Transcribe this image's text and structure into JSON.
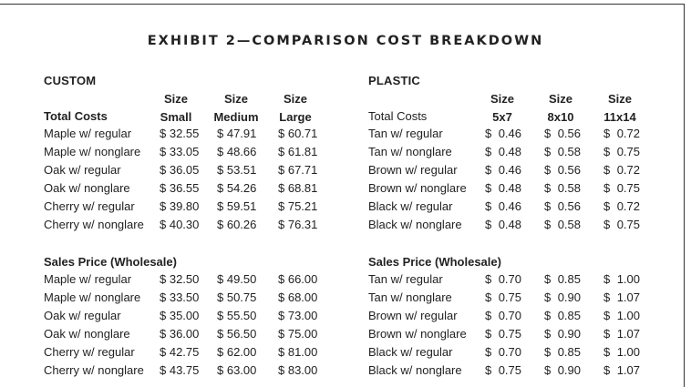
{
  "title": "EXHIBIT 2—COMPARISON COST BREAKDOWN",
  "custom": {
    "label": "CUSTOM",
    "headers": [
      {
        "line1": "Size",
        "line2": "Small"
      },
      {
        "line1": "Size",
        "line2": "Medium"
      },
      {
        "line1": "Size",
        "line2": "Large"
      }
    ],
    "total_costs_label": "Total Costs",
    "total_costs": [
      {
        "label": "Maple w/ regular",
        "values": [
          "$ 32.55",
          "$ 47.91",
          "$ 60.71"
        ]
      },
      {
        "label": "Maple w/ nonglare",
        "values": [
          "$ 33.05",
          "$ 48.66",
          "$ 61.81"
        ]
      },
      {
        "label": "Oak w/ regular",
        "values": [
          "$ 36.05",
          "$ 53.51",
          "$ 67.71"
        ]
      },
      {
        "label": "Oak w/ nonglare",
        "values": [
          "$ 36.55",
          "$ 54.26",
          "$ 68.81"
        ]
      },
      {
        "label": "Cherry w/ regular",
        "values": [
          "$ 39.80",
          "$ 59.51",
          "$ 75.21"
        ]
      },
      {
        "label": "Cherry w/ nonglare",
        "values": [
          "$ 40.30",
          "$ 60.26",
          "$ 76.31"
        ]
      }
    ],
    "sales_label": "Sales Price (Wholesale)",
    "sales": [
      {
        "label": "Maple w/ regular",
        "values": [
          "$ 32.50",
          "$ 49.50",
          "$ 66.00"
        ]
      },
      {
        "label": "Maple w/ nonglare",
        "values": [
          "$ 33.50",
          "$ 50.75",
          "$ 68.00"
        ]
      },
      {
        "label": "Oak w/ regular",
        "values": [
          "$ 35.00",
          "$ 55.50",
          "$ 73.00"
        ]
      },
      {
        "label": "Oak w/ nonglare",
        "values": [
          "$ 36.00",
          "$ 56.50",
          "$ 75.00"
        ]
      },
      {
        "label": "Cherry w/ regular",
        "values": [
          "$ 42.75",
          "$ 62.00",
          "$ 81.00"
        ]
      },
      {
        "label": "Cherry w/ nonglare",
        "values": [
          "$ 43.75",
          "$ 63.00",
          "$ 83.00"
        ]
      }
    ]
  },
  "plastic": {
    "label": "PLASTIC",
    "headers": [
      {
        "line1": "Size",
        "line2": "5x7"
      },
      {
        "line1": "Size",
        "line2": "8x10"
      },
      {
        "line1": "Size",
        "line2": "11x14"
      }
    ],
    "total_costs_label": "Total Costs",
    "total_costs": [
      {
        "label": "Tan w/ regular",
        "values": [
          [
            "$",
            "0.46"
          ],
          [
            "$",
            "0.56"
          ],
          [
            "$",
            "0.72"
          ]
        ]
      },
      {
        "label": "Tan w/ nonglare",
        "values": [
          [
            "$",
            "0.48"
          ],
          [
            "$",
            "0.58"
          ],
          [
            "$",
            "0.75"
          ]
        ]
      },
      {
        "label": "Brown w/ regular",
        "values": [
          [
            "$",
            "0.46"
          ],
          [
            "$",
            "0.56"
          ],
          [
            "$",
            "0.72"
          ]
        ]
      },
      {
        "label": "Brown w/ nonglare",
        "values": [
          [
            "$",
            "0.48"
          ],
          [
            "$",
            "0.58"
          ],
          [
            "$",
            "0.75"
          ]
        ]
      },
      {
        "label": "Black w/ regular",
        "values": [
          [
            "$",
            "0.46"
          ],
          [
            "$",
            "0.56"
          ],
          [
            "$",
            "0.72"
          ]
        ]
      },
      {
        "label": "Black w/ nonglare",
        "values": [
          [
            "$",
            "0.48"
          ],
          [
            "$",
            "0.58"
          ],
          [
            "$",
            "0.75"
          ]
        ]
      }
    ],
    "sales_label": "Sales Price (Wholesale)",
    "sales": [
      {
        "label": "Tan w/ regular",
        "values": [
          [
            "$",
            "0.70"
          ],
          [
            "$",
            "0.85"
          ],
          [
            "$",
            "1.00"
          ]
        ]
      },
      {
        "label": "Tan w/ nonglare",
        "values": [
          [
            "$",
            "0.75"
          ],
          [
            "$",
            "0.90"
          ],
          [
            "$",
            "1.07"
          ]
        ]
      },
      {
        "label": "Brown w/ regular",
        "values": [
          [
            "$",
            "0.70"
          ],
          [
            "$",
            "0.85"
          ],
          [
            "$",
            "1.00"
          ]
        ]
      },
      {
        "label": "Brown w/ nonglare",
        "values": [
          [
            "$",
            "0.75"
          ],
          [
            "$",
            "0.90"
          ],
          [
            "$",
            "1.07"
          ]
        ]
      },
      {
        "label": "Black w/ regular",
        "values": [
          [
            "$",
            "0.70"
          ],
          [
            "$",
            "0.85"
          ],
          [
            "$",
            "1.00"
          ]
        ]
      },
      {
        "label": "Black w/ nonglare",
        "values": [
          [
            "$",
            "0.75"
          ],
          [
            "$",
            "0.90"
          ],
          [
            "$",
            "1.07"
          ]
        ]
      }
    ]
  }
}
